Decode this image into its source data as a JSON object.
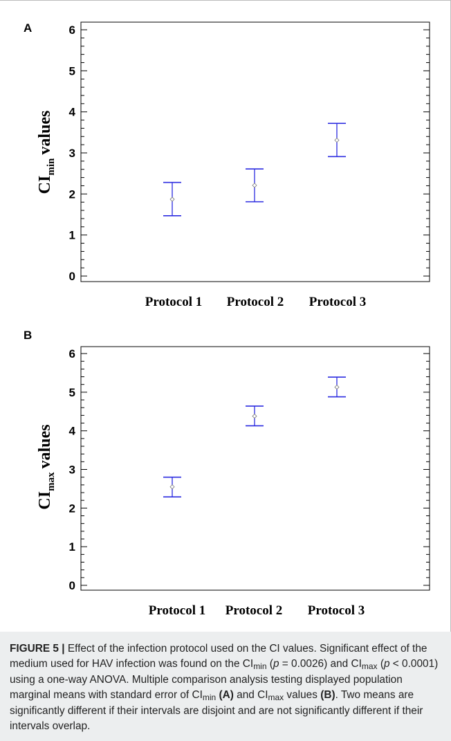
{
  "panels": [
    {
      "id": "A",
      "letter": "A",
      "ylabel_main": "CI",
      "ylabel_sub": "min",
      "ylabel_suffix": "values",
      "xlabels": [
        "Protocol 1",
        "Protocol 2",
        "Protocol 3"
      ],
      "yticks": [
        "0",
        "1",
        "2",
        "3",
        "4",
        "5",
        "6"
      ]
    },
    {
      "id": "B",
      "letter": "B",
      "ylabel_main": "CI",
      "ylabel_sub": "max",
      "ylabel_suffix": "values",
      "xlabels": [
        "Protocol 1",
        "Protocol 2",
        "Protocol 3"
      ],
      "yticks": [
        "0",
        "1",
        "2",
        "3",
        "4",
        "5",
        "6"
      ]
    }
  ],
  "chart_data": [
    {
      "type": "scatter",
      "title": "",
      "xlabel": "",
      "ylabel": "CImin values",
      "categories": [
        "Protocol 1",
        "Protocol 2",
        "Protocol 3"
      ],
      "means": [
        1.87,
        2.21,
        3.31
      ],
      "lower": [
        1.47,
        1.81,
        2.91
      ],
      "upper": [
        2.28,
        2.61,
        3.72
      ],
      "ylim": [
        -0.2,
        6.2
      ],
      "yticks": [
        0,
        1,
        2,
        3,
        4,
        5,
        6
      ],
      "grid": false,
      "error_bar_color": "#2b2be0"
    },
    {
      "type": "scatter",
      "title": "",
      "xlabel": "",
      "ylabel": "CImax values",
      "categories": [
        "Protocol 1",
        "Protocol 2",
        "Protocol 3"
      ],
      "means": [
        2.55,
        4.38,
        5.13
      ],
      "lower": [
        2.29,
        4.13,
        4.88
      ],
      "upper": [
        2.8,
        4.64,
        5.39
      ],
      "ylim": [
        -0.2,
        6.2
      ],
      "yticks": [
        0,
        1,
        2,
        3,
        4,
        5,
        6
      ],
      "grid": false,
      "error_bar_color": "#2b2be0"
    }
  ],
  "caption": {
    "label": "FIGURE 5 |",
    "t1": " Effect of the infection protocol used on the CI values. Significant effect of the medium used for HAV infection was found on the CI",
    "sub1": "min",
    "t2": " (",
    "p1": "p",
    "t3": " = 0.0026) and CI",
    "sub2": "max",
    "t4": " (",
    "p2": "p",
    "t5": " < 0.0001) using a one-way ANOVA. Multiple comparison analysis testing displayed population marginal means with standard error of CI",
    "sub3": "min",
    "t6": " ",
    "refA": "(A)",
    "t7": " and CI",
    "sub4": "max",
    "t8": " values ",
    "refB": "(B)",
    "t9": ". Two means are significantly different if their intervals are disjoint and are not significantly different if their intervals overlap."
  }
}
